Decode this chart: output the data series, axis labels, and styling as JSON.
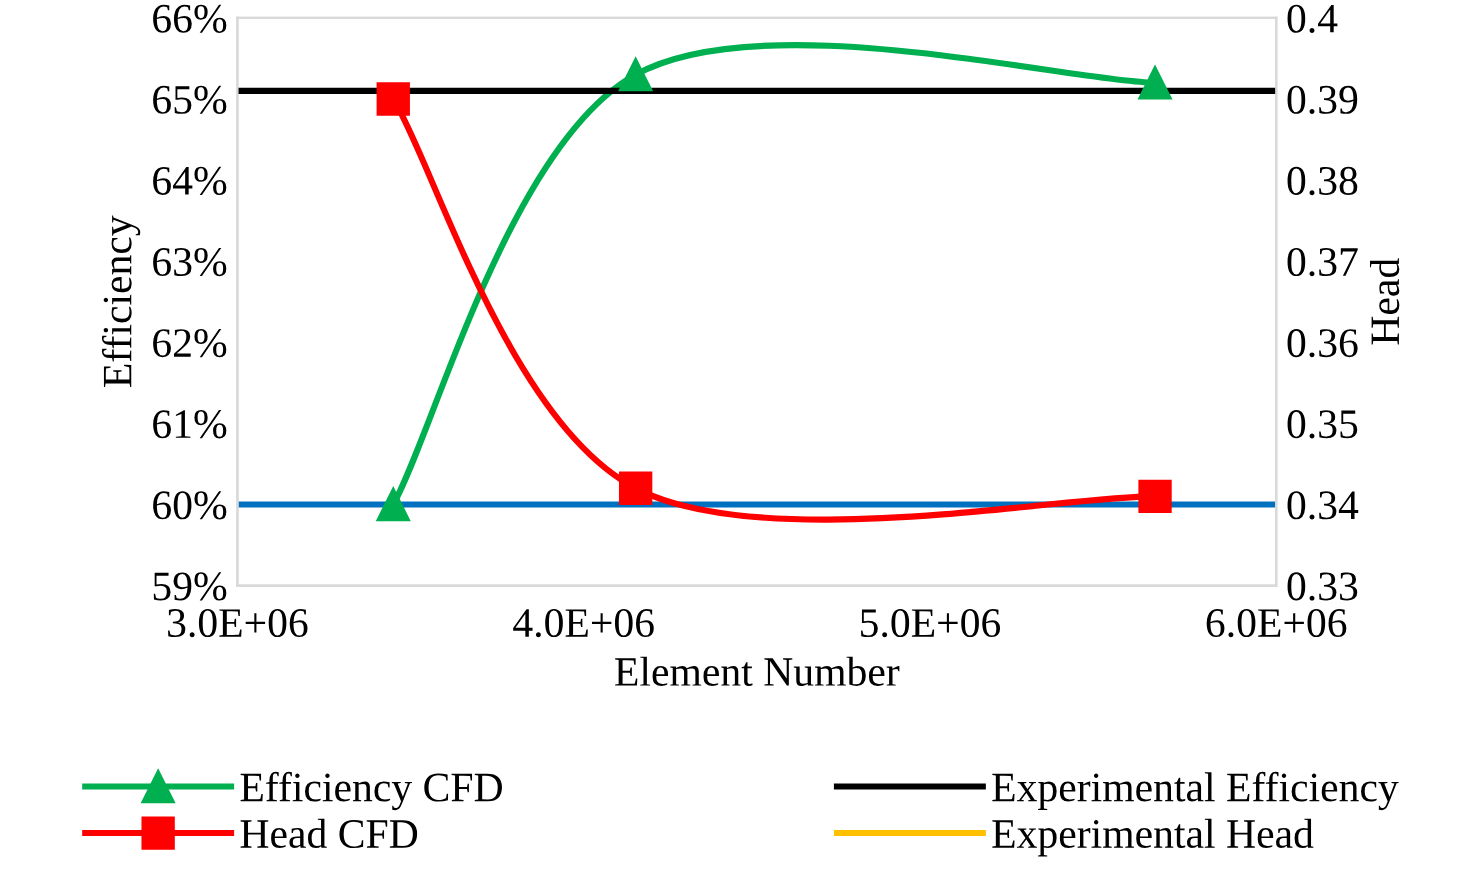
{
  "chart_data": {
    "type": "line",
    "xlabel": "Element Number",
    "ylabel": "Efficiency",
    "y2label": "Head",
    "xlim": [
      3000000,
      6000000
    ],
    "xticks": [
      {
        "value": 3000000,
        "label": "3.0E+06"
      },
      {
        "value": 4000000,
        "label": "4.0E+06"
      },
      {
        "value": 5000000,
        "label": "5.0E+06"
      },
      {
        "value": 6000000,
        "label": "6.0E+06"
      }
    ],
    "ylim": [
      59,
      66
    ],
    "yticks": [
      {
        "value": 59,
        "label": "59%"
      },
      {
        "value": 60,
        "label": "60%"
      },
      {
        "value": 61,
        "label": "61%"
      },
      {
        "value": 62,
        "label": "62%"
      },
      {
        "value": 63,
        "label": "63%"
      },
      {
        "value": 64,
        "label": "64%"
      },
      {
        "value": 65,
        "label": "65%"
      },
      {
        "value": 66,
        "label": "66%"
      }
    ],
    "y2lim": [
      0.33,
      0.4
    ],
    "y2ticks": [
      0.33,
      0.34,
      0.35,
      0.36,
      0.37,
      0.38,
      0.39,
      0.4
    ],
    "legend": "bottom",
    "grid": false,
    "series": [
      {
        "name": "Efficiency CFD",
        "color": "#00b050",
        "marker": "triangle",
        "x": [
          3450000,
          4150000,
          5650000
        ],
        "values": [
          60.0,
          65.3,
          65.2
        ]
      },
      {
        "name": "Experimental Efficiency",
        "color": "#000000",
        "marker": "none",
        "x": [
          3000000,
          6000000
        ],
        "values": [
          65.1,
          65.1
        ]
      },
      {
        "name": "Head CFD",
        "color": "#ff0000",
        "marker": "square",
        "axis": "y2",
        "x": [
          3450000,
          4150000,
          5650000
        ],
        "values": [
          0.39,
          0.342,
          0.341
        ]
      },
      {
        "name": "Experimental Head",
        "color": "#ffc000",
        "marker": "none",
        "axis": "y2"
      }
    ],
    "ref_lines": [
      {
        "axis": "y",
        "value": 60,
        "color": "#0070c0"
      }
    ]
  }
}
